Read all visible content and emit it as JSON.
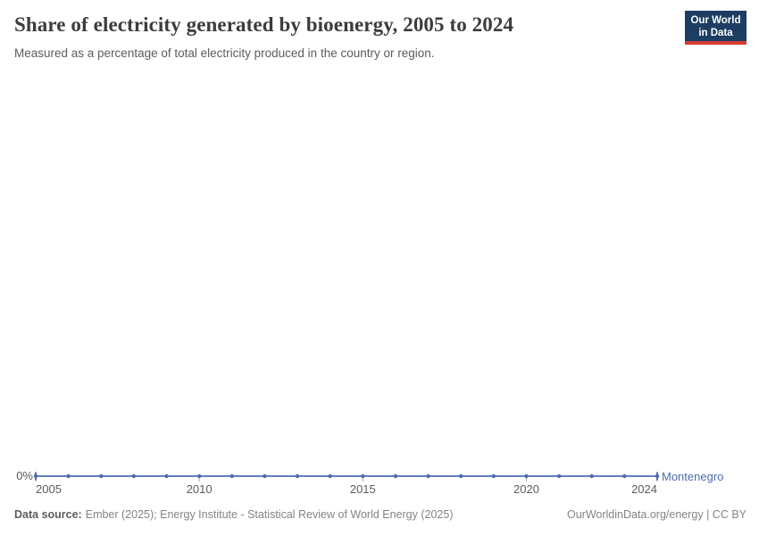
{
  "header": {
    "title": "Share of electricity generated by bioenergy, 2005 to 2024",
    "subtitle": "Measured as a percentage of total electricity produced in the country or region.",
    "logo": {
      "line1": "Our World",
      "line2": "in Data"
    }
  },
  "chart_data": {
    "type": "line",
    "title": "Share of electricity generated by bioenergy, 2005 to 2024",
    "subtitle": "Measured as a percentage of total electricity produced in the country or region.",
    "x": [
      2005,
      2006,
      2007,
      2008,
      2009,
      2010,
      2011,
      2012,
      2013,
      2014,
      2015,
      2016,
      2017,
      2018,
      2019,
      2020,
      2021,
      2022,
      2023,
      2024
    ],
    "series": [
      {
        "name": "Montenegro",
        "color": "#4d6bb0",
        "values": [
          0,
          0,
          0,
          0,
          0,
          0,
          0,
          0,
          0,
          0,
          0,
          0,
          0,
          0,
          0,
          0,
          0,
          0,
          0,
          0
        ]
      }
    ],
    "unit": "%",
    "x_range": [
      2005,
      2024
    ],
    "x_ticks": [
      2005,
      2010,
      2015,
      2020,
      2024
    ],
    "y_zero_label": "0%",
    "ylim": [
      0,
      100
    ],
    "grid": false,
    "legend_position": "inline-right-of-line",
    "point_markers": true
  },
  "footer": {
    "data_source_label": "Data source:",
    "data_source_value": "Ember (2025); Energy Institute - Statistical Review of World Energy (2025)",
    "link": "OurWorldinData.org/energy | CC BY"
  },
  "colors": {
    "line": "#4d6bb0",
    "axis_text": "#5b5b5b",
    "tick": "#a5a5a5",
    "title_text": "#3c3c3c",
    "logo_bg": "#1d3d63",
    "logo_red": "#d63b32"
  }
}
